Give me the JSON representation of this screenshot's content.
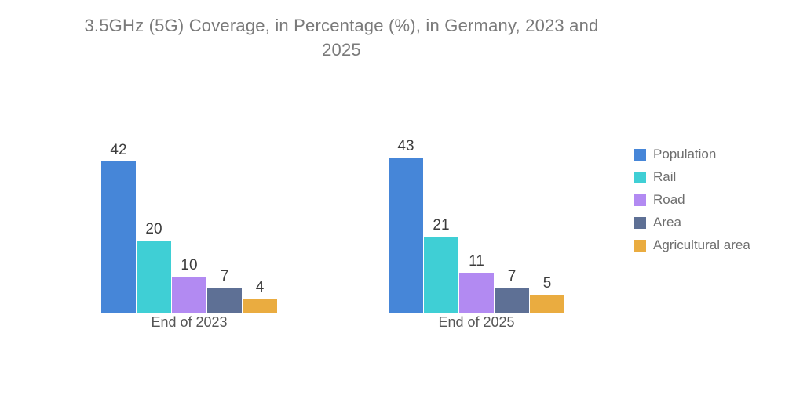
{
  "chart_data": {
    "type": "bar",
    "title": "3.5GHz (5G) Coverage, in Percentage (%), in Germany, 2023 and 2025",
    "categories": [
      "End of 2023",
      "End of 2025"
    ],
    "series": [
      {
        "name": "Population",
        "color": "#4686D8",
        "values": [
          42,
          43
        ]
      },
      {
        "name": "Rail",
        "color": "#3FCFD5",
        "values": [
          20,
          21
        ]
      },
      {
        "name": "Road",
        "color": "#B28AF2",
        "values": [
          10,
          11
        ]
      },
      {
        "name": "Area",
        "color": "#5E7095",
        "values": [
          7,
          7
        ]
      },
      {
        "name": "Agricultural area",
        "color": "#EAAC40",
        "values": [
          4,
          5
        ]
      }
    ],
    "ylim": [
      0,
      43
    ],
    "grid": false,
    "axis_lines": false,
    "legend_position": "right",
    "value_labels": "above-bars",
    "colors": {
      "title_text": "#7a7a7a",
      "value_label_text": "#3c3c3c",
      "category_label_text": "#565656",
      "legend_text": "#6e6e6e",
      "background": "#ffffff"
    }
  }
}
